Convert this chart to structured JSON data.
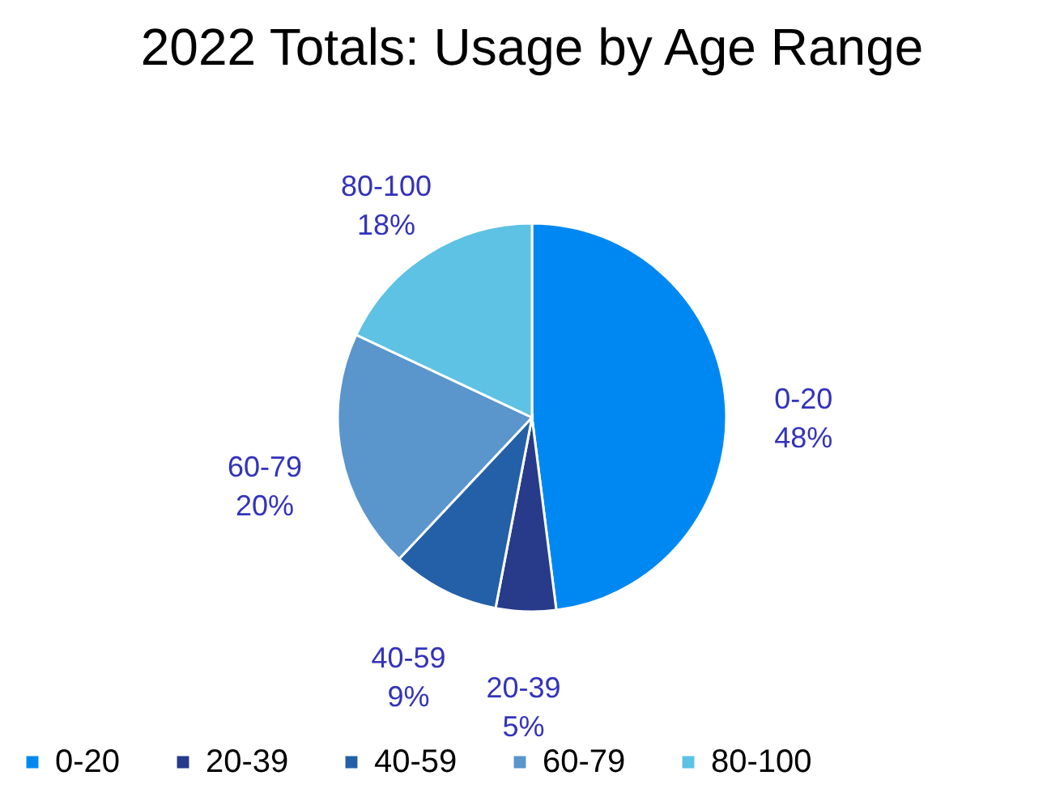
{
  "chart_data": {
    "type": "pie",
    "title": "2022 Totals: Usage by Age Range",
    "categories": [
      "0-20",
      "20-39",
      "40-59",
      "60-79",
      "80-100"
    ],
    "values": [
      48,
      5,
      9,
      20,
      18
    ],
    "colors": [
      "#0088f2",
      "#283a8a",
      "#2460a8",
      "#5a95cc",
      "#5dc2e3"
    ],
    "value_labels": [
      "48%",
      "5%",
      "9%",
      "20%",
      "18%"
    ],
    "legend": "bottom"
  }
}
